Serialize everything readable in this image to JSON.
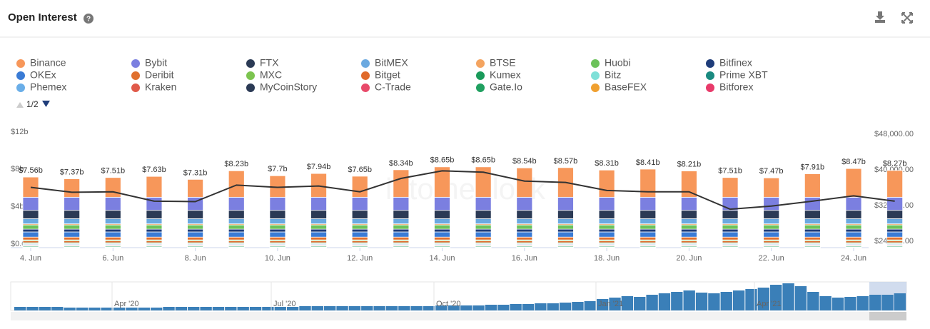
{
  "header": {
    "title": "Open Interest",
    "help": "?"
  },
  "legend_pager": "1/2",
  "chart_data": {
    "type": "bar",
    "stacked": true,
    "categories": [
      "4. Jun",
      null,
      "6. Jun",
      null,
      "8. Jun",
      null,
      "10. Jun",
      null,
      "12. Jun",
      null,
      "14. Jun",
      null,
      "16. Jun",
      null,
      "18. Jun",
      null,
      "20. Jun",
      null,
      "22. Jun",
      null,
      "24. Jun",
      null
    ],
    "ylim": [
      0,
      12
    ],
    "yticks": [
      {
        "value": 0,
        "label": "$0.00"
      },
      {
        "value": 4,
        "label": "$4b"
      },
      {
        "value": 8,
        "label": "$8b"
      },
      {
        "value": 12,
        "label": "$12b"
      }
    ],
    "y2lim": [
      24000,
      48000
    ],
    "y2ticks": [
      {
        "value": 24000,
        "label": "$24,000.00"
      },
      {
        "value": 32000,
        "label": "$32,000.00"
      },
      {
        "value": 40000,
        "label": "$40,000.00"
      },
      {
        "value": 48000,
        "label": "$48,000.00"
      }
    ],
    "totals": {
      "values": [
        7.56,
        7.37,
        7.51,
        7.63,
        7.31,
        8.23,
        7.7,
        7.94,
        7.65,
        8.34,
        8.65,
        8.65,
        8.54,
        8.57,
        8.31,
        8.41,
        8.21,
        7.51,
        7.47,
        7.91,
        8.47,
        8.27
      ],
      "value_labels": [
        "$7.56b",
        "$7.37b",
        "$7.51b",
        "$7.63b",
        "$7.31b",
        "$8.23b",
        "$7.7b",
        "$7.94b",
        "$7.65b",
        "$8.34b",
        "$8.65b",
        "$8.65b",
        "$8.54b",
        "$8.57b",
        "$8.31b",
        "$8.41b",
        "$8.21b",
        "$7.51b",
        "$7.47b",
        "$7.91b",
        "$8.47b",
        "$8.27b"
      ]
    },
    "series": [
      {
        "name": "Binance",
        "color": "#f7975a",
        "values": [
          2.16,
          1.97,
          2.11,
          2.23,
          1.91,
          2.83,
          2.3,
          2.54,
          2.25,
          2.94,
          3.25,
          3.25,
          3.14,
          3.17,
          2.91,
          3.01,
          2.81,
          2.11,
          2.07,
          2.51,
          3.07,
          2.87
        ]
      },
      {
        "name": "Bybit",
        "color": "#7b7fe0",
        "values": [
          1.4,
          1.4,
          1.4,
          1.4,
          1.4,
          1.4,
          1.4,
          1.4,
          1.4,
          1.4,
          1.4,
          1.4,
          1.4,
          1.4,
          1.4,
          1.4,
          1.4,
          1.4,
          1.4,
          1.4,
          1.4,
          1.4
        ]
      },
      {
        "name": "FTX",
        "color": "#2b3a55",
        "values": [
          0.9,
          0.9,
          0.9,
          0.9,
          0.9,
          0.9,
          0.9,
          0.9,
          0.9,
          0.9,
          0.9,
          0.9,
          0.9,
          0.9,
          0.9,
          0.9,
          0.9,
          0.9,
          0.9,
          0.9,
          0.9,
          0.9
        ]
      },
      {
        "name": "BitMEX",
        "color": "#6ba9e0",
        "values": [
          0.55,
          0.55,
          0.55,
          0.55,
          0.55,
          0.55,
          0.55,
          0.55,
          0.55,
          0.55,
          0.55,
          0.55,
          0.55,
          0.55,
          0.55,
          0.55,
          0.55,
          0.55,
          0.55,
          0.55,
          0.55,
          0.55
        ]
      },
      {
        "name": "BTSE",
        "color": "#f4a460",
        "values": [
          0.12,
          0.12,
          0.12,
          0.12,
          0.12,
          0.12,
          0.12,
          0.12,
          0.12,
          0.12,
          0.12,
          0.12,
          0.12,
          0.12,
          0.12,
          0.12,
          0.12,
          0.12,
          0.12,
          0.12,
          0.12,
          0.12
        ]
      },
      {
        "name": "Huobi",
        "color": "#6cc25a",
        "values": [
          0.45,
          0.45,
          0.45,
          0.45,
          0.45,
          0.45,
          0.45,
          0.45,
          0.45,
          0.45,
          0.45,
          0.45,
          0.45,
          0.45,
          0.45,
          0.45,
          0.45,
          0.45,
          0.45,
          0.45,
          0.45,
          0.45
        ]
      },
      {
        "name": "Bitfinex",
        "color": "#1f3d7a",
        "values": [
          0.3,
          0.3,
          0.3,
          0.3,
          0.3,
          0.3,
          0.3,
          0.3,
          0.3,
          0.3,
          0.3,
          0.3,
          0.3,
          0.3,
          0.3,
          0.3,
          0.3,
          0.3,
          0.3,
          0.3,
          0.3,
          0.3
        ]
      },
      {
        "name": "OKEx",
        "color": "#3a7bd5",
        "values": [
          0.55,
          0.55,
          0.55,
          0.55,
          0.55,
          0.55,
          0.55,
          0.55,
          0.55,
          0.55,
          0.55,
          0.55,
          0.55,
          0.55,
          0.55,
          0.55,
          0.55,
          0.55,
          0.55,
          0.55,
          0.55,
          0.55
        ]
      },
      {
        "name": "Deribit",
        "color": "#e0702e",
        "values": [
          0.3,
          0.3,
          0.3,
          0.3,
          0.3,
          0.3,
          0.3,
          0.3,
          0.3,
          0.3,
          0.3,
          0.3,
          0.3,
          0.3,
          0.3,
          0.3,
          0.3,
          0.3,
          0.3,
          0.3,
          0.3,
          0.3
        ]
      },
      {
        "name": "MXC",
        "color": "#7cc44f",
        "values": [
          0.1,
          0.1,
          0.1,
          0.1,
          0.1,
          0.1,
          0.1,
          0.1,
          0.1,
          0.1,
          0.1,
          0.1,
          0.1,
          0.1,
          0.1,
          0.1,
          0.1,
          0.1,
          0.1,
          0.1,
          0.1,
          0.1
        ]
      },
      {
        "name": "Bitget",
        "color": "#e06a2a",
        "values": [
          0.2,
          0.2,
          0.2,
          0.2,
          0.2,
          0.2,
          0.2,
          0.2,
          0.2,
          0.2,
          0.2,
          0.2,
          0.2,
          0.2,
          0.2,
          0.2,
          0.2,
          0.2,
          0.2,
          0.2,
          0.2,
          0.2
        ]
      },
      {
        "name": "Kumex",
        "color": "#1a9a5a",
        "values": [
          0.1,
          0.1,
          0.1,
          0.1,
          0.1,
          0.1,
          0.1,
          0.1,
          0.1,
          0.1,
          0.1,
          0.1,
          0.1,
          0.1,
          0.1,
          0.1,
          0.1,
          0.1,
          0.1,
          0.1,
          0.1,
          0.1
        ]
      },
      {
        "name": "Bitz",
        "color": "#7fe0d8",
        "values": [
          0.03,
          0.03,
          0.03,
          0.03,
          0.03,
          0.03,
          0.03,
          0.03,
          0.03,
          0.03,
          0.03,
          0.03,
          0.03,
          0.03,
          0.03,
          0.03,
          0.03,
          0.03,
          0.03,
          0.03,
          0.03,
          0.03
        ]
      },
      {
        "name": "Prime XBT",
        "color": "#1a8a80",
        "values": [
          0.03,
          0.03,
          0.03,
          0.03,
          0.03,
          0.03,
          0.03,
          0.03,
          0.03,
          0.03,
          0.03,
          0.03,
          0.03,
          0.03,
          0.03,
          0.03,
          0.03,
          0.03,
          0.03,
          0.03,
          0.03,
          0.03
        ]
      },
      {
        "name": "Phemex",
        "color": "#6aaee8",
        "values": [
          0.08,
          0.08,
          0.08,
          0.08,
          0.08,
          0.08,
          0.08,
          0.08,
          0.08,
          0.08,
          0.08,
          0.08,
          0.08,
          0.08,
          0.08,
          0.08,
          0.08,
          0.08,
          0.08,
          0.08,
          0.08,
          0.08
        ]
      },
      {
        "name": "Kraken",
        "color": "#e05a4a",
        "values": [
          0.08,
          0.08,
          0.08,
          0.08,
          0.08,
          0.08,
          0.08,
          0.08,
          0.08,
          0.08,
          0.08,
          0.08,
          0.08,
          0.08,
          0.08,
          0.08,
          0.08,
          0.08,
          0.08,
          0.08,
          0.08,
          0.08
        ]
      },
      {
        "name": "MyCoinStory",
        "color": "#2b3a55",
        "values": [
          0.02,
          0.02,
          0.02,
          0.02,
          0.02,
          0.02,
          0.02,
          0.02,
          0.02,
          0.02,
          0.02,
          0.02,
          0.02,
          0.02,
          0.02,
          0.02,
          0.02,
          0.02,
          0.02,
          0.02,
          0.02,
          0.02
        ]
      },
      {
        "name": "C-Trade",
        "color": "#e84a6a",
        "values": [
          0.02,
          0.02,
          0.02,
          0.02,
          0.02,
          0.02,
          0.02,
          0.02,
          0.02,
          0.02,
          0.02,
          0.02,
          0.02,
          0.02,
          0.02,
          0.02,
          0.02,
          0.02,
          0.02,
          0.02,
          0.02,
          0.02
        ]
      },
      {
        "name": "Gate.Io",
        "color": "#20a060",
        "values": [
          0.1,
          0.1,
          0.1,
          0.1,
          0.1,
          0.1,
          0.1,
          0.1,
          0.1,
          0.1,
          0.1,
          0.1,
          0.1,
          0.1,
          0.1,
          0.1,
          0.1,
          0.1,
          0.1,
          0.1,
          0.1,
          0.1
        ]
      },
      {
        "name": "BaseFEX",
        "color": "#f0a030",
        "values": [
          0.03,
          0.03,
          0.03,
          0.03,
          0.03,
          0.03,
          0.03,
          0.03,
          0.03,
          0.03,
          0.03,
          0.03,
          0.03,
          0.03,
          0.03,
          0.03,
          0.03,
          0.03,
          0.03,
          0.03,
          0.03,
          0.03
        ]
      },
      {
        "name": "Bitforex",
        "color": "#e83a6a",
        "values": [
          0.04,
          0.04,
          0.04,
          0.04,
          0.04,
          0.04,
          0.04,
          0.04,
          0.04,
          0.04,
          0.04,
          0.04,
          0.04,
          0.04,
          0.04,
          0.04,
          0.04,
          0.04,
          0.04,
          0.04,
          0.04,
          0.04
        ]
      },
      {
        "color": "#333333",
        "axis": "y2",
        "values": [
          36400,
          35300,
          35400,
          33300,
          33200,
          36900,
          36400,
          36700,
          35400,
          38400,
          40100,
          39800,
          37800,
          37500,
          35700,
          35400,
          35400,
          31500,
          32200,
          33300,
          34500,
          33300
        ]
      }
    ],
    "navigator": {
      "labels": [
        "Apr '20",
        "Jul '20",
        "Oct '20",
        "Jan '21",
        "Apr '21"
      ],
      "color": "#3a7fb8",
      "ylim": [
        0,
        40
      ],
      "values": [
        5,
        5,
        5,
        5,
        4,
        4,
        4,
        4,
        4,
        4,
        4,
        4,
        5,
        5,
        5,
        5,
        5,
        5,
        5,
        5,
        5,
        5,
        5,
        6,
        6,
        6,
        6,
        6,
        6,
        6,
        6,
        6,
        6,
        6,
        7,
        7,
        7,
        7,
        8,
        8,
        9,
        9,
        10,
        10,
        11,
        12,
        13,
        16,
        18,
        20,
        19,
        22,
        24,
        26,
        28,
        25,
        24,
        26,
        28,
        30,
        32,
        36,
        38,
        34,
        26,
        20,
        18,
        19,
        20,
        22,
        22,
        24
      ]
    }
  }
}
